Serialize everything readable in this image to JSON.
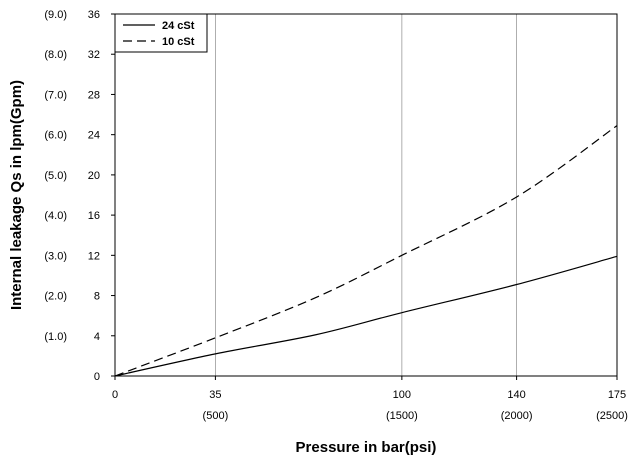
{
  "chart_data": {
    "type": "line",
    "xlabel": "Pressure in bar(psi)",
    "ylabel": "Internal leakage Qs in lpm(Gpm)",
    "xlim": [
      0,
      175
    ],
    "ylim": [
      0,
      36
    ],
    "x_ticks": [
      {
        "value": 0,
        "label": "0",
        "sublabel": ""
      },
      {
        "value": 35,
        "label": "35",
        "sublabel": "(500)"
      },
      {
        "value": 100,
        "label": "100",
        "sublabel": "(1500)"
      },
      {
        "value": 140,
        "label": "140",
        "sublabel": "(2000)"
      },
      {
        "value": 175,
        "label": "175",
        "sublabel": "(2500)"
      }
    ],
    "y_ticks": [
      {
        "value": 0,
        "label": "0",
        "sublabel": ""
      },
      {
        "value": 4,
        "label": "4",
        "sublabel": "(1.0)"
      },
      {
        "value": 8,
        "label": "8",
        "sublabel": "(2.0)"
      },
      {
        "value": 12,
        "label": "12",
        "sublabel": "(3.0)"
      },
      {
        "value": 16,
        "label": "16",
        "sublabel": "(4.0)"
      },
      {
        "value": 20,
        "label": "20",
        "sublabel": "(5.0)"
      },
      {
        "value": 24,
        "label": "24",
        "sublabel": "(6.0)"
      },
      {
        "value": 28,
        "label": "28",
        "sublabel": "(7.0)"
      },
      {
        "value": 32,
        "label": "32",
        "sublabel": "(8.0)"
      },
      {
        "value": 36,
        "label": "36",
        "sublabel": "(9.0)"
      }
    ],
    "grid": {
      "vertical": true,
      "horizontal": false
    },
    "legend_position": "top-left",
    "series": [
      {
        "name": "24 cSt",
        "style": "solid",
        "color": "#000000",
        "x": [
          0,
          35,
          70,
          100,
          140,
          175
        ],
        "y": [
          0,
          2.2,
          4.1,
          6.3,
          9.1,
          11.9
        ]
      },
      {
        "name": "10 cSt",
        "style": "dashed",
        "color": "#000000",
        "x": [
          0,
          35,
          70,
          100,
          140,
          175
        ],
        "y": [
          0,
          3.8,
          7.8,
          12.0,
          17.8,
          24.9
        ]
      }
    ]
  }
}
